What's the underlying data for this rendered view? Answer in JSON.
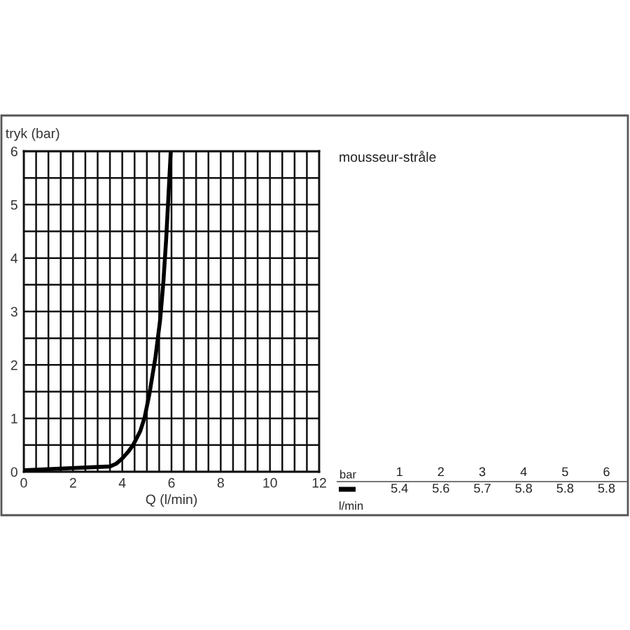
{
  "chart_data": [
    {
      "type": "line",
      "xlabel": "Q (l/min)",
      "ylabel": "tryk (bar)",
      "x": [
        0,
        3.5,
        3.75,
        4.0,
        4.25,
        4.44,
        4.73,
        4.91,
        5.1,
        5.35,
        5.54,
        5.67,
        5.78,
        5.88,
        5.97
      ],
      "series": [
        {
          "color": "#000000",
          "values": [
            0.03,
            0.1,
            0.15,
            0.25,
            0.38,
            0.5,
            0.76,
            1.02,
            1.45,
            2.15,
            2.85,
            3.55,
            4.33,
            5.2,
            6.0
          ]
        }
      ],
      "xlim": [
        0,
        12
      ],
      "ylim": [
        0,
        6
      ],
      "xticks": [
        0,
        {
          "value": 0.5,
          "label": null
        },
        {
          "value": 1,
          "label": null
        },
        {
          "value": 1.5,
          "label": null
        },
        2,
        {
          "value": 2.5,
          "label": null
        },
        {
          "value": 3,
          "label": null
        },
        {
          "value": 3.5,
          "label": null
        },
        4,
        {
          "value": 4.5,
          "label": null
        },
        {
          "value": 5,
          "label": null
        },
        {
          "value": 5.5,
          "label": null
        },
        6,
        {
          "value": 6.5,
          "label": null
        },
        {
          "value": 7,
          "label": null
        },
        {
          "value": 7.5,
          "label": null
        },
        8,
        {
          "value": 8.5,
          "label": null
        },
        {
          "value": 9,
          "label": null
        },
        {
          "value": 9.5,
          "label": null
        },
        10,
        {
          "value": 10.5,
          "label": null
        },
        {
          "value": 11,
          "label": null
        },
        {
          "value": 11.5,
          "label": null
        },
        12
      ],
      "yticks": [
        0,
        {
          "value": 0.5,
          "label": null
        },
        1,
        {
          "value": 1.5,
          "label": null
        },
        2,
        {
          "value": 2.5,
          "label": null
        },
        3,
        {
          "value": 3.5,
          "label": null
        },
        4,
        {
          "value": 4.5,
          "label": null
        },
        5,
        {
          "value": 5.5,
          "label": null
        },
        6
      ],
      "grid": true
    },
    {
      "type": "heatmap",
      "title": "mousseur-stråle",
      "xlabel": "bar",
      "categories": [
        "1",
        "2",
        "3",
        "4",
        "5",
        "6"
      ],
      "y_categories": [
        null
      ],
      "cells": [
        [
          5.4,
          5.6,
          5.7,
          5.8,
          5.8,
          5.8
        ]
      ],
      "data_labels": true,
      "annotations": [
        "l/min"
      ]
    }
  ]
}
